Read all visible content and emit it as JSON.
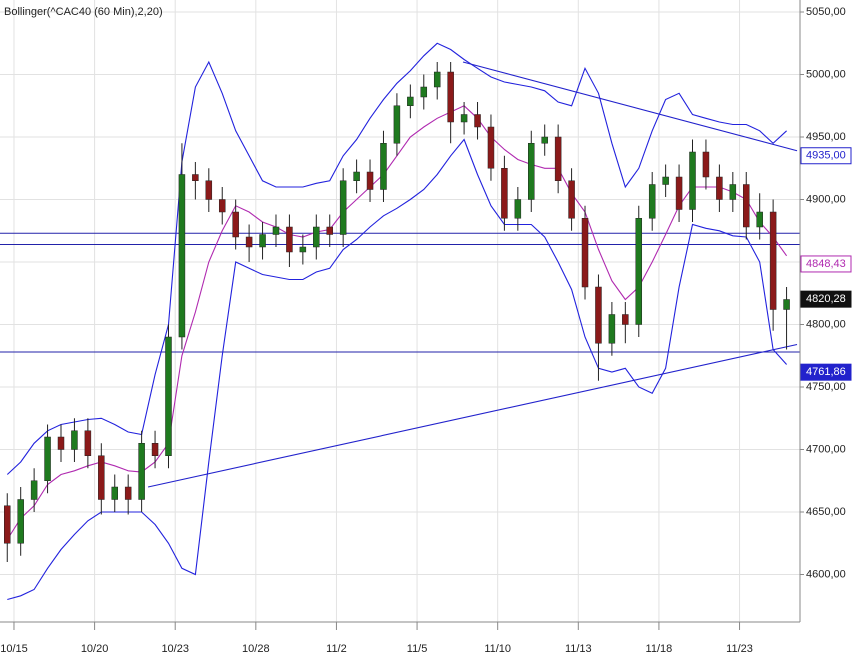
{
  "chart_data": {
    "type": "candlestick",
    "title": "Bollinger(^CAC40 (60 Min),2,20)",
    "x": [
      -0.25,
      0.25,
      0.75,
      1.25,
      1.75,
      2.25,
      2.75,
      3.25,
      3.75,
      4.25,
      4.75,
      5.25,
      5.75,
      6.25,
      6.75,
      7.25,
      7.75,
      8.25,
      8.75,
      9.25,
      9.75,
      10.25,
      10.75,
      11.25,
      11.75,
      12.25,
      12.75,
      13.25,
      13.75,
      14.25,
      14.75,
      15.25,
      15.75,
      16.25,
      16.75,
      17.25,
      17.75,
      18.25,
      18.75,
      19.25,
      19.75,
      20.25,
      20.75,
      21.25,
      21.75,
      22.25,
      22.75,
      23.25,
      23.75,
      24.25,
      24.75,
      25.25,
      25.75,
      26.25,
      26.75,
      27.25,
      27.75,
      28.25,
      28.75
    ],
    "open": [
      4655,
      4625,
      4660,
      4675,
      4710,
      4700,
      4715,
      4695,
      4660,
      4670,
      4660,
      4705,
      4695,
      4790,
      4920,
      4915,
      4900,
      4890,
      4870,
      4862,
      4872,
      4878,
      4858,
      4862,
      4878,
      4872,
      4915,
      4922,
      4908,
      4945,
      4975,
      4982,
      4990,
      5002,
      4962,
      4968,
      4958,
      4925,
      4885,
      4900,
      4945,
      4950,
      4915,
      4885,
      4830,
      4785,
      4808,
      4800,
      4885,
      4912,
      4918,
      4892,
      4938,
      4918,
      4900,
      4912,
      4878,
      4890,
      4812
    ],
    "high": [
      4665,
      4670,
      4685,
      4720,
      4720,
      4725,
      4725,
      4705,
      4680,
      4680,
      4715,
      4715,
      4800,
      4945,
      4930,
      4925,
      4910,
      4900,
      4880,
      4882,
      4888,
      4888,
      4872,
      4888,
      4888,
      4925,
      4932,
      4932,
      4955,
      4985,
      4992,
      5000,
      5010,
      5010,
      4978,
      4978,
      4968,
      4935,
      4910,
      4955,
      4960,
      4960,
      4925,
      4895,
      4840,
      4818,
      4818,
      4895,
      4922,
      4928,
      4928,
      4948,
      4948,
      4928,
      4922,
      4922,
      4905,
      4900,
      4830
    ],
    "low": [
      4610,
      4615,
      4650,
      4665,
      4690,
      4690,
      4685,
      4648,
      4650,
      4648,
      4650,
      4685,
      4685,
      4780,
      4900,
      4890,
      4880,
      4860,
      4850,
      4852,
      4862,
      4846,
      4848,
      4852,
      4862,
      4862,
      4905,
      4898,
      4898,
      4935,
      4965,
      4972,
      4980,
      4945,
      4952,
      4948,
      4915,
      4875,
      4875,
      4890,
      4935,
      4905,
      4875,
      4820,
      4755,
      4775,
      4785,
      4790,
      4875,
      4902,
      4882,
      4882,
      4908,
      4890,
      4890,
      4868,
      4868,
      4795,
      4780
    ],
    "close": [
      4625,
      4660,
      4675,
      4710,
      4700,
      4715,
      4695,
      4660,
      4670,
      4660,
      4705,
      4695,
      4790,
      4920,
      4915,
      4900,
      4890,
      4870,
      4862,
      4872,
      4878,
      4858,
      4862,
      4878,
      4872,
      4915,
      4922,
      4908,
      4945,
      4975,
      4982,
      4990,
      5002,
      4962,
      4968,
      4958,
      4925,
      4885,
      4900,
      4945,
      4950,
      4915,
      4885,
      4830,
      4785,
      4808,
      4800,
      4885,
      4912,
      4918,
      4892,
      4938,
      4918,
      4900,
      4912,
      4878,
      4890,
      4812,
      4820
    ],
    "up_color": "#1f7a1f",
    "down_color": "#8b1a1a",
    "bands": [
      {
        "color": "#2222dd",
        "values": [
          4680,
          4690,
          4705,
          4715,
          4720,
          4722,
          4724,
          4725,
          4720,
          4714,
          4712,
          4760,
          4800,
          4930,
          4990,
          5010,
          4985,
          4955,
          4935,
          4915,
          4910,
          4910,
          4910,
          4913,
          4915,
          4935,
          4948,
          4965,
          4980,
          4993,
          5003,
          5015,
          5025,
          5020,
          5012,
          5005,
          4998,
          4994,
          4992,
          4990,
          4987,
          4978,
          4975,
          5005,
          4985,
          4945,
          4910,
          4925,
          4955,
          4980,
          4985,
          4968,
          4965,
          4962,
          4960,
          4960,
          4955,
          4945,
          4955
        ]
      },
      {
        "color": "#b02ab0",
        "values": [
          4628,
          4645,
          4655,
          4672,
          4680,
          4683,
          4687,
          4690,
          4687,
          4683,
          4682,
          4690,
          4705,
          4775,
          4810,
          4850,
          4875,
          4895,
          4890,
          4882,
          4878,
          4872,
          4870,
          4874,
          4876,
          4890,
          4900,
          4910,
          4920,
          4935,
          4950,
          4958,
          4965,
          4970,
          4975,
          4965,
          4950,
          4940,
          4932,
          4928,
          4925,
          4925,
          4905,
          4890,
          4860,
          4835,
          4820,
          4830,
          4850,
          4872,
          4895,
          4910,
          4910,
          4910,
          4906,
          4900,
          4882,
          4870,
          4855
        ]
      },
      {
        "color": "#2222dd",
        "values": [
          4580,
          4583,
          4588,
          4605,
          4620,
          4632,
          4643,
          4650,
          4650,
          4650,
          4650,
          4640,
          4625,
          4605,
          4600,
          4690,
          4775,
          4850,
          4845,
          4840,
          4838,
          4836,
          4836,
          4842,
          4845,
          4860,
          4868,
          4878,
          4887,
          4893,
          4900,
          4908,
          4920,
          4935,
          4948,
          4920,
          4895,
          4880,
          4880,
          4880,
          4870,
          4850,
          4828,
          4790,
          4765,
          4762,
          4765,
          4750,
          4745,
          4765,
          4830,
          4880,
          4877,
          4875,
          4871,
          4870,
          4850,
          4780,
          4768
        ]
      }
    ],
    "trendlines": [
      {
        "color": "#2222cc",
        "x": [
          16.71,
          29.14
        ],
        "y": [
          5010,
          4939
        ]
      },
      {
        "color": "#2222cc",
        "x": [
          4.99,
          29.14
        ],
        "y": [
          4670,
          4784
        ]
      }
    ],
    "hlines": {
      "color": "#2222aa",
      "values": [
        4873,
        4864,
        4778
      ]
    },
    "price_labels": [
      {
        "value": 4935,
        "label": "4935,00",
        "color": "#2222cc",
        "filled": false
      },
      {
        "value": 4848.43,
        "label": "4848,43",
        "color": "#b02ab0",
        "filled": false
      },
      {
        "value": 4820.28,
        "label": "4820,28",
        "color": "#111111",
        "filled": true
      },
      {
        "value": 4761.86,
        "label": "4761,86",
        "color": "#2222cc",
        "filled": true
      }
    ],
    "xlim": [
      -0.52,
      29.25
    ],
    "ylim": [
      4562,
      5059.6
    ],
    "xticks": [
      {
        "value": 0,
        "label": "10/15"
      },
      {
        "value": 3,
        "label": "10/20"
      },
      {
        "value": 6,
        "label": "10/23"
      },
      {
        "value": 9,
        "label": "10/28"
      },
      {
        "value": 12,
        "label": "11/2"
      },
      {
        "value": 15,
        "label": "11/5"
      },
      {
        "value": 18,
        "label": "11/10"
      },
      {
        "value": 21,
        "label": "11/13"
      },
      {
        "value": 24,
        "label": "11/18"
      },
      {
        "value": 27,
        "label": "11/23"
      }
    ],
    "yticks": [
      {
        "value": 4600,
        "label": "4600,00"
      },
      {
        "value": 4650,
        "label": "4650,00"
      },
      {
        "value": 4700,
        "label": "4700,00"
      },
      {
        "value": 4750,
        "label": "4750,00"
      },
      {
        "value": 4800,
        "label": "4800,00"
      },
      {
        "value": 4850,
        "label": "4850,00"
      },
      {
        "value": 4900,
        "label": "4900,00"
      },
      {
        "value": 4950,
        "label": "4950,00"
      },
      {
        "value": 5000,
        "label": "5000,00"
      },
      {
        "value": 5050,
        "label": "5050,00"
      }
    ],
    "grid": true
  }
}
